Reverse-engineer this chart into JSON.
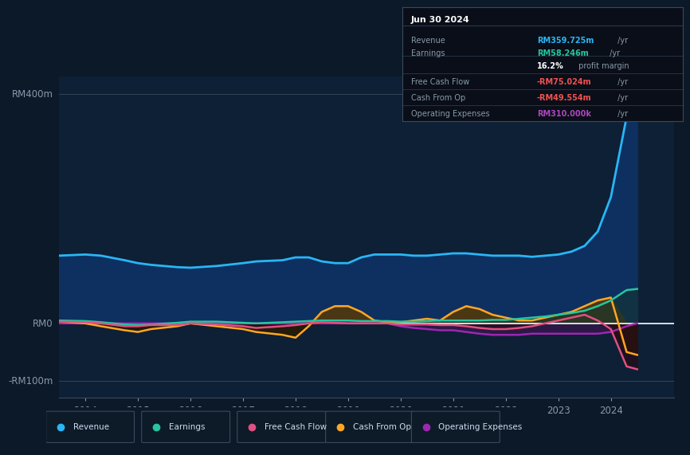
{
  "bg_color": "#0c1929",
  "plot_bg_color": "#0d2035",
  "title": "Jun 30 2024",
  "ylabel_400": "RM400m",
  "ylabel_0": "RM0",
  "ylabel_n100": "-RM100m",
  "ylim": [
    -130,
    430
  ],
  "xlim": [
    2013.5,
    2025.2
  ],
  "xticks": [
    2014,
    2015,
    2016,
    2017,
    2018,
    2019,
    2020,
    2021,
    2022,
    2023,
    2024
  ],
  "info_box": {
    "title": "Jun 30 2024",
    "rows": [
      {
        "label": "Revenue",
        "value": "RM359.725m",
        "suffix": " /yr",
        "value_color": "#29b6f6"
      },
      {
        "label": "Earnings",
        "value": "RM58.246m",
        "suffix": " /yr",
        "value_color": "#26c6a0"
      },
      {
        "label": "",
        "value": "16.2%",
        "suffix": " profit margin",
        "value_color": "#ffffff"
      },
      {
        "label": "Free Cash Flow",
        "value": "-RM75.024m",
        "suffix": " /yr",
        "value_color": "#ef5350"
      },
      {
        "label": "Cash From Op",
        "value": "-RM49.554m",
        "suffix": " /yr",
        "value_color": "#ef5350"
      },
      {
        "label": "Operating Expenses",
        "value": "RM310.000k",
        "suffix": " /yr",
        "value_color": "#ab47bc"
      }
    ]
  },
  "series": {
    "revenue": {
      "color": "#29b6f6",
      "fill_color": "#1a3a5c",
      "label": "Revenue",
      "x": [
        2013.5,
        2014.0,
        2014.3,
        2014.75,
        2015.0,
        2015.25,
        2015.75,
        2016.0,
        2016.5,
        2017.0,
        2017.25,
        2017.75,
        2018.0,
        2018.25,
        2018.5,
        2018.75,
        2019.0,
        2019.25,
        2019.5,
        2019.75,
        2020.0,
        2020.25,
        2020.5,
        2020.75,
        2021.0,
        2021.25,
        2021.5,
        2021.75,
        2022.0,
        2022.25,
        2022.5,
        2022.75,
        2023.0,
        2023.25,
        2023.5,
        2023.75,
        2024.0,
        2024.3,
        2024.5
      ],
      "y": [
        118,
        120,
        118,
        110,
        105,
        102,
        98,
        97,
        100,
        105,
        108,
        110,
        115,
        115,
        108,
        105,
        105,
        115,
        120,
        120,
        120,
        118,
        118,
        120,
        122,
        122,
        120,
        118,
        118,
        118,
        116,
        118,
        120,
        125,
        135,
        160,
        220,
        360,
        390
      ]
    },
    "earnings": {
      "color": "#26c6a0",
      "fill_color": "#1a4a3a",
      "label": "Earnings",
      "x": [
        2013.5,
        2014.0,
        2014.3,
        2014.75,
        2015.0,
        2015.25,
        2015.75,
        2016.0,
        2016.5,
        2017.0,
        2017.25,
        2017.75,
        2018.0,
        2018.25,
        2018.5,
        2018.75,
        2019.0,
        2019.25,
        2019.5,
        2019.75,
        2020.0,
        2020.25,
        2020.5,
        2020.75,
        2021.0,
        2021.25,
        2021.5,
        2021.75,
        2022.0,
        2022.25,
        2022.5,
        2022.75,
        2023.0,
        2023.25,
        2023.5,
        2023.75,
        2024.0,
        2024.3,
        2024.5
      ],
      "y": [
        5,
        4,
        2,
        -2,
        -3,
        -2,
        1,
        3,
        3,
        1,
        0,
        2,
        3,
        4,
        5,
        5,
        5,
        4,
        4,
        4,
        3,
        3,
        4,
        5,
        5,
        5,
        5,
        6,
        6,
        8,
        10,
        12,
        15,
        18,
        22,
        30,
        40,
        58,
        60
      ]
    },
    "free_cash_flow": {
      "color": "#e05080",
      "fill_color": "#4a1a2a",
      "label": "Free Cash Flow",
      "x": [
        2013.5,
        2014.0,
        2014.3,
        2014.75,
        2015.0,
        2015.25,
        2015.75,
        2016.0,
        2016.5,
        2017.0,
        2017.25,
        2017.75,
        2018.0,
        2018.25,
        2018.5,
        2018.75,
        2019.0,
        2019.25,
        2019.5,
        2019.75,
        2020.0,
        2020.25,
        2020.5,
        2020.75,
        2021.0,
        2021.25,
        2021.5,
        2021.75,
        2022.0,
        2022.25,
        2022.5,
        2022.75,
        2023.0,
        2023.25,
        2023.5,
        2023.75,
        2024.0,
        2024.3,
        2024.5
      ],
      "y": [
        3,
        2,
        0,
        -5,
        -5,
        -3,
        -3,
        0,
        -2,
        -5,
        -8,
        -5,
        -3,
        0,
        2,
        1,
        0,
        0,
        0,
        0,
        -2,
        -2,
        -2,
        -3,
        -3,
        -5,
        -8,
        -10,
        -10,
        -8,
        -5,
        0,
        5,
        10,
        15,
        5,
        -10,
        -75,
        -80
      ]
    },
    "cash_from_op": {
      "color": "#ffa726",
      "fill_color": "#4a3000",
      "label": "Cash From Op",
      "x": [
        2013.5,
        2014.0,
        2014.3,
        2014.75,
        2015.0,
        2015.25,
        2015.75,
        2016.0,
        2016.5,
        2017.0,
        2017.25,
        2017.75,
        2018.0,
        2018.25,
        2018.5,
        2018.75,
        2019.0,
        2019.25,
        2019.5,
        2019.75,
        2020.0,
        2020.25,
        2020.5,
        2020.75,
        2021.0,
        2021.25,
        2021.5,
        2021.75,
        2022.0,
        2022.25,
        2022.5,
        2022.75,
        2023.0,
        2023.25,
        2023.5,
        2023.75,
        2024.0,
        2024.3,
        2024.5
      ],
      "y": [
        3,
        0,
        -5,
        -12,
        -15,
        -10,
        -5,
        0,
        -5,
        -10,
        -15,
        -20,
        -25,
        -5,
        20,
        30,
        30,
        20,
        5,
        2,
        2,
        5,
        8,
        5,
        20,
        30,
        25,
        15,
        10,
        5,
        5,
        10,
        15,
        20,
        30,
        40,
        45,
        -50,
        -55
      ]
    },
    "operating_expenses": {
      "color": "#9c27b0",
      "fill_color": "#3a1550",
      "label": "Operating Expenses",
      "x": [
        2013.5,
        2014.0,
        2014.3,
        2014.75,
        2015.0,
        2015.25,
        2015.75,
        2016.0,
        2016.5,
        2017.0,
        2017.25,
        2017.75,
        2018.0,
        2018.25,
        2018.5,
        2018.75,
        2019.0,
        2019.25,
        2019.5,
        2019.75,
        2020.0,
        2020.25,
        2020.5,
        2020.75,
        2021.0,
        2021.25,
        2021.5,
        2021.75,
        2022.0,
        2022.25,
        2022.5,
        2022.75,
        2023.0,
        2023.25,
        2023.5,
        2023.75,
        2024.0,
        2024.3,
        2024.5
      ],
      "y": [
        0,
        0,
        0,
        0,
        0,
        0,
        0,
        0,
        0,
        0,
        0,
        0,
        0,
        0,
        0,
        0,
        0,
        0,
        0,
        0,
        -5,
        -8,
        -10,
        -12,
        -12,
        -15,
        -18,
        -20,
        -20,
        -20,
        -18,
        -18,
        -18,
        -18,
        -18,
        -18,
        -15,
        -5,
        0
      ]
    }
  },
  "legend": [
    {
      "label": "Revenue",
      "color": "#29b6f6"
    },
    {
      "label": "Earnings",
      "color": "#26c6a0"
    },
    {
      "label": "Free Cash Flow",
      "color": "#e05080"
    },
    {
      "label": "Cash From Op",
      "color": "#ffa726"
    },
    {
      "label": "Operating Expenses",
      "color": "#9c27b0"
    }
  ]
}
